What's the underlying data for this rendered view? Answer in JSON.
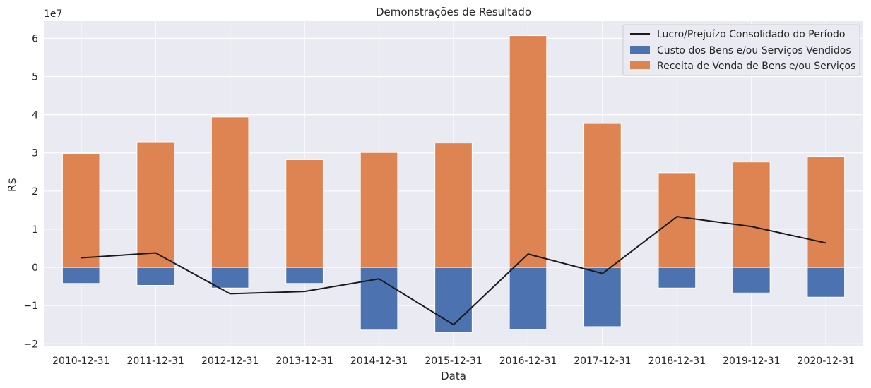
{
  "chart_data": {
    "type": "bar",
    "title": "Demonstrações de Resultado",
    "xlabel": "Data",
    "ylabel": "R$",
    "y_scale_label": "1e7",
    "y_scale": 10000000,
    "ylim": [
      -2.05,
      6.45
    ],
    "yticks": [
      -2,
      -1,
      0,
      1,
      2,
      3,
      4,
      5,
      6
    ],
    "ytick_labels": [
      "−2",
      "−1",
      "0",
      "1",
      "2",
      "3",
      "4",
      "5",
      "6"
    ],
    "grid": true,
    "legend_position": "top-right",
    "categories": [
      "2010-12-31",
      "2011-12-31",
      "2012-12-31",
      "2013-12-31",
      "2014-12-31",
      "2015-12-31",
      "2016-12-31",
      "2017-12-31",
      "2018-12-31",
      "2019-12-31",
      "2020-12-31"
    ],
    "series": [
      {
        "name": "Custo dos Bens e/ou Serviços Vendidos",
        "type": "bar",
        "color": "#4c72b0",
        "values": [
          -0.42,
          -0.47,
          -0.54,
          -0.42,
          -1.64,
          -1.7,
          -1.62,
          -1.55,
          -0.54,
          -0.67,
          -0.78
        ]
      },
      {
        "name": "Receita de Venda de Bens e/ou Serviços",
        "type": "bar",
        "color": "#dd8452",
        "values": [
          2.98,
          3.29,
          3.94,
          2.82,
          3.01,
          3.26,
          6.07,
          3.77,
          2.48,
          2.76,
          2.91
        ]
      },
      {
        "name": "Lucro/Prejuízo Consolidado do Período",
        "type": "line",
        "color": "#1a1a1a",
        "values": [
          0.25,
          0.38,
          -0.69,
          -0.63,
          -0.3,
          -1.5,
          0.35,
          -0.16,
          1.33,
          1.07,
          0.64
        ]
      }
    ]
  },
  "style": {
    "plot_background": "#eaeaf2",
    "grid_color": "#ffffff",
    "text_color": "#262626"
  }
}
